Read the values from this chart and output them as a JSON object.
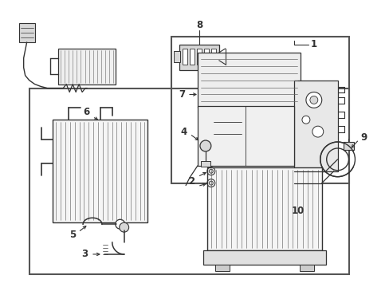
{
  "bg_color": "#ffffff",
  "line_color": "#333333",
  "gray_light": "#d8d8d8",
  "gray_med": "#b0b0b0",
  "fig_width": 4.89,
  "fig_height": 3.6,
  "dpi": 100
}
